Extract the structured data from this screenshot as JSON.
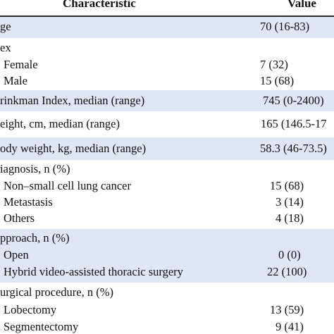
{
  "header": {
    "characteristic": "Characteristic",
    "value": "Value"
  },
  "rows": [
    {
      "label": "ge",
      "value": "70 (16-83)",
      "indent": 0
    },
    {
      "label": "ex",
      "value": "",
      "indent": 0
    },
    {
      "label": "Female",
      "value": "7 (32)",
      "indent": 1
    },
    {
      "label": "Male",
      "value": "15 (68)",
      "indent": 1
    },
    {
      "label": "rinkman Index, median (range)",
      "value": "745 (0-2400)",
      "indent": 0
    },
    {
      "label": "eight, cm, median (range)",
      "value": "165 (146.5-17",
      "indent": 0
    },
    {
      "label": "ody weight, kg, median (range)",
      "value": "58.3 (46-73.5)",
      "indent": 0
    },
    {
      "label": "iagnosis, n (%)",
      "value": "",
      "indent": 0
    },
    {
      "label": "Non–small cell lung cancer",
      "value": "15 (68)",
      "indent": 1
    },
    {
      "label": "Metastasis",
      "value": "3 (14)",
      "indent": 1
    },
    {
      "label": "Others",
      "value": "4 (18)",
      "indent": 1
    },
    {
      "label": "pproach, n (%)",
      "value": "",
      "indent": 0
    },
    {
      "label": "Open",
      "value": "0 (0)",
      "indent": 1
    },
    {
      "label": "Hybrid video-assisted thoracic surgery",
      "value": "22 (100)",
      "indent": 1
    },
    {
      "label": "urgical procedure, n (%)",
      "value": "",
      "indent": 0
    },
    {
      "label": "Lobectomy",
      "value": "13 (59)",
      "indent": 1
    },
    {
      "label": "Segmentectomy",
      "value": "9 (41)",
      "indent": 1
    }
  ]
}
